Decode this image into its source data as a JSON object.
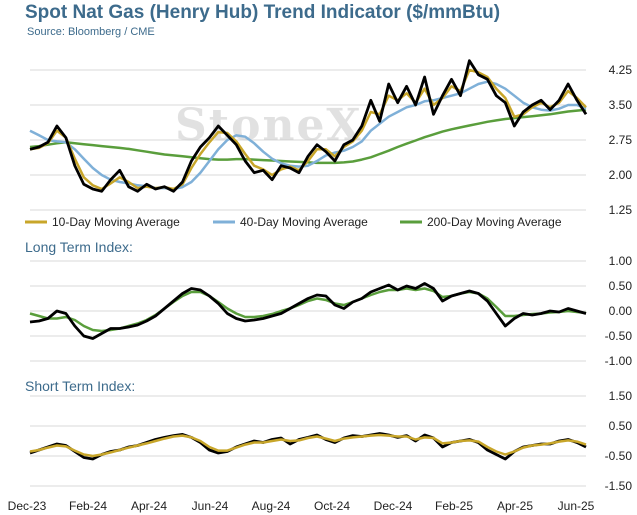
{
  "title": "Spot Nat Gas (Henry Hub) Trend Indicator ($/mmBtu)",
  "subtitle": "Source: Bloomberg / CME",
  "watermark": "StoneX",
  "colors": {
    "price": "#000000",
    "ma10": "#c8a62a",
    "ma40": "#7fb0d8",
    "ma200": "#5a9e3c",
    "grid": "#d9d9d9",
    "title": "#3d6b8c"
  },
  "chart_data": [
    {
      "type": "line",
      "title": "",
      "x_ticks": [
        "Dec-23",
        "Feb-24",
        "Apr-24",
        "Jun-24",
        "Aug-24",
        "Oct-24",
        "Dec-24",
        "Feb-25",
        "Apr-25",
        "Jun-25"
      ],
      "ylim": [
        1.25,
        4.25
      ],
      "y_ticks": [
        "4.25",
        "3.50",
        "2.75",
        "2.00",
        "1.25"
      ],
      "grid": true,
      "legend": [
        "10-Day Moving Average",
        "40-Day Moving Average",
        "200-Day Moving Average"
      ],
      "legend_placement": "bottom",
      "series": [
        {
          "values": [
            2.55,
            2.6,
            2.7,
            3.05,
            2.8,
            2.2,
            1.8,
            1.7,
            1.65,
            1.9,
            2.1,
            1.75,
            1.65,
            1.8,
            1.7,
            1.75,
            1.65,
            1.85,
            2.3,
            2.6,
            2.8,
            3.05,
            2.85,
            2.65,
            2.3,
            2.05,
            2.1,
            1.9,
            2.2,
            2.15,
            2.05,
            2.4,
            2.65,
            2.5,
            2.3,
            2.65,
            2.75,
            3.05,
            3.6,
            3.15,
            3.95,
            3.55,
            3.9,
            3.5,
            4.1,
            3.3,
            3.7,
            4.05,
            3.7,
            4.45,
            4.15,
            4.05,
            3.7,
            3.55,
            3.05,
            3.35,
            3.5,
            3.6,
            3.4,
            3.6,
            3.95,
            3.6,
            3.3
          ]
        },
        {
          "values": [
            2.55,
            2.58,
            2.68,
            2.95,
            2.8,
            2.35,
            1.95,
            1.78,
            1.7,
            1.82,
            1.95,
            1.85,
            1.72,
            1.75,
            1.72,
            1.74,
            1.7,
            1.8,
            2.15,
            2.45,
            2.7,
            2.92,
            2.9,
            2.72,
            2.45,
            2.2,
            2.12,
            2.0,
            2.12,
            2.18,
            2.1,
            2.3,
            2.55,
            2.55,
            2.4,
            2.6,
            2.72,
            2.95,
            3.35,
            3.3,
            3.7,
            3.6,
            3.75,
            3.55,
            3.85,
            3.5,
            3.65,
            3.9,
            3.8,
            4.25,
            4.2,
            4.1,
            3.85,
            3.65,
            3.25,
            3.3,
            3.45,
            3.55,
            3.45,
            3.55,
            3.8,
            3.65,
            3.45
          ]
        },
        {
          "values": [
            2.95,
            2.85,
            2.75,
            2.72,
            2.7,
            2.55,
            2.35,
            2.15,
            2.0,
            1.9,
            1.85,
            1.82,
            1.78,
            1.76,
            1.72,
            1.72,
            1.7,
            1.74,
            1.85,
            2.05,
            2.3,
            2.55,
            2.75,
            2.85,
            2.82,
            2.68,
            2.5,
            2.35,
            2.25,
            2.2,
            2.18,
            2.2,
            2.3,
            2.42,
            2.48,
            2.52,
            2.6,
            2.72,
            2.95,
            3.1,
            3.25,
            3.35,
            3.45,
            3.5,
            3.58,
            3.6,
            3.65,
            3.7,
            3.75,
            3.85,
            3.95,
            4.0,
            3.95,
            3.85,
            3.7,
            3.55,
            3.45,
            3.4,
            3.38,
            3.42,
            3.5,
            3.5,
            3.42
          ]
        },
        {
          "values": [
            2.6,
            2.62,
            2.65,
            2.68,
            2.7,
            2.68,
            2.66,
            2.64,
            2.62,
            2.6,
            2.58,
            2.56,
            2.53,
            2.5,
            2.47,
            2.44,
            2.42,
            2.4,
            2.38,
            2.36,
            2.34,
            2.33,
            2.33,
            2.34,
            2.34,
            2.33,
            2.32,
            2.31,
            2.3,
            2.29,
            2.28,
            2.27,
            2.26,
            2.26,
            2.26,
            2.27,
            2.29,
            2.33,
            2.38,
            2.45,
            2.52,
            2.6,
            2.67,
            2.74,
            2.81,
            2.87,
            2.93,
            2.98,
            3.02,
            3.06,
            3.1,
            3.14,
            3.17,
            3.2,
            3.22,
            3.24,
            3.26,
            3.28,
            3.3,
            3.33,
            3.36,
            3.38,
            3.4
          ]
        }
      ]
    },
    {
      "type": "line",
      "title": "Long Term Index:",
      "ylim": [
        -1.0,
        1.0
      ],
      "y_ticks": [
        "1.00",
        "0.50",
        "0.00",
        "-0.50",
        "-1.00"
      ],
      "grid": true,
      "series": [
        {
          "values": [
            -0.22,
            -0.2,
            -0.15,
            0.0,
            -0.05,
            -0.3,
            -0.5,
            -0.55,
            -0.45,
            -0.35,
            -0.35,
            -0.32,
            -0.28,
            -0.2,
            -0.1,
            0.05,
            0.2,
            0.35,
            0.45,
            0.42,
            0.3,
            0.15,
            -0.05,
            -0.15,
            -0.2,
            -0.18,
            -0.15,
            -0.1,
            -0.05,
            0.05,
            0.15,
            0.25,
            0.32,
            0.3,
            0.12,
            0.05,
            0.18,
            0.25,
            0.38,
            0.45,
            0.52,
            0.42,
            0.5,
            0.45,
            0.55,
            0.45,
            0.2,
            0.3,
            0.35,
            0.4,
            0.35,
            0.2,
            -0.05,
            -0.3,
            -0.15,
            -0.05,
            -0.08,
            -0.05,
            0.0,
            -0.02,
            0.05,
            0.0,
            -0.05
          ]
        },
        {
          "values": [
            -0.05,
            -0.1,
            -0.15,
            -0.15,
            -0.12,
            -0.18,
            -0.3,
            -0.38,
            -0.4,
            -0.38,
            -0.35,
            -0.3,
            -0.25,
            -0.18,
            -0.08,
            0.05,
            0.18,
            0.3,
            0.38,
            0.38,
            0.3,
            0.18,
            0.05,
            -0.05,
            -0.12,
            -0.12,
            -0.1,
            -0.06,
            0.0,
            0.05,
            0.12,
            0.2,
            0.25,
            0.22,
            0.15,
            0.12,
            0.18,
            0.25,
            0.32,
            0.38,
            0.42,
            0.42,
            0.45,
            0.42,
            0.45,
            0.4,
            0.28,
            0.3,
            0.35,
            0.38,
            0.35,
            0.25,
            0.08,
            -0.1,
            -0.1,
            -0.08,
            -0.06,
            -0.05,
            -0.03,
            -0.02,
            0.0,
            -0.02,
            -0.04
          ]
        }
      ]
    },
    {
      "type": "line",
      "title": "Short Term Index:",
      "ylim": [
        -1.5,
        1.5
      ],
      "y_ticks": [
        "1.50",
        "0.50",
        "-0.50",
        "-1.50"
      ],
      "x_ticks": [
        "Dec-23",
        "Feb-24",
        "Apr-24",
        "Jun-24",
        "Aug-24",
        "Oct-24",
        "Dec-24",
        "Feb-25",
        "Apr-25",
        "Jun-25"
      ],
      "grid": true,
      "series": [
        {
          "values": [
            -0.4,
            -0.3,
            -0.2,
            -0.1,
            -0.15,
            -0.35,
            -0.55,
            -0.6,
            -0.45,
            -0.35,
            -0.3,
            -0.2,
            -0.15,
            -0.05,
            0.05,
            0.12,
            0.18,
            0.22,
            0.12,
            -0.05,
            -0.3,
            -0.4,
            -0.35,
            -0.2,
            -0.1,
            0.0,
            -0.05,
            0.05,
            0.1,
            -0.1,
            0.05,
            0.12,
            0.2,
            0.05,
            -0.05,
            0.1,
            0.18,
            0.15,
            0.2,
            0.25,
            0.2,
            0.12,
            0.18,
            0.0,
            0.2,
            0.1,
            -0.2,
            -0.05,
            0.0,
            0.05,
            -0.05,
            -0.3,
            -0.45,
            -0.6,
            -0.35,
            -0.2,
            -0.15,
            -0.1,
            -0.1,
            0.0,
            0.05,
            -0.05,
            -0.2
          ]
        },
        {
          "values": [
            -0.35,
            -0.3,
            -0.22,
            -0.15,
            -0.18,
            -0.32,
            -0.45,
            -0.5,
            -0.45,
            -0.38,
            -0.3,
            -0.22,
            -0.15,
            -0.08,
            0.0,
            0.08,
            0.15,
            0.18,
            0.12,
            0.0,
            -0.2,
            -0.32,
            -0.32,
            -0.22,
            -0.12,
            -0.05,
            -0.05,
            0.0,
            0.05,
            0.0,
            0.02,
            0.1,
            0.15,
            0.08,
            0.0,
            0.08,
            0.12,
            0.15,
            0.18,
            0.2,
            0.18,
            0.15,
            0.15,
            0.05,
            0.12,
            0.1,
            -0.08,
            -0.05,
            0.0,
            0.02,
            -0.02,
            -0.2,
            -0.35,
            -0.45,
            -0.35,
            -0.22,
            -0.15,
            -0.12,
            -0.08,
            -0.02,
            0.02,
            -0.02,
            -0.12
          ]
        }
      ]
    }
  ]
}
